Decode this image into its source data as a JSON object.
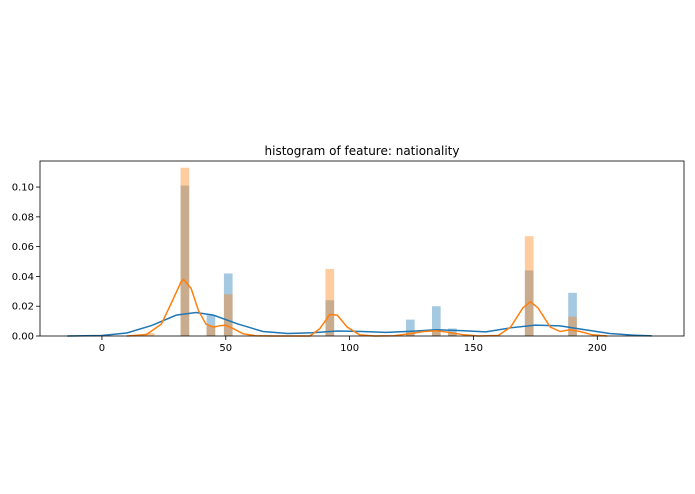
{
  "chart_data": {
    "type": "bar",
    "title": "histogram of feature: nationality",
    "xlabel": "",
    "ylabel": "",
    "xlim": [
      -25,
      235
    ],
    "ylim": [
      0,
      0.1175
    ],
    "xticks": [
      0,
      50,
      100,
      150,
      200
    ],
    "yticks": [
      0.0,
      0.02,
      0.04,
      0.06,
      0.08,
      0.1
    ],
    "ytick_labels": [
      "0.00",
      "0.02",
      "0.04",
      "0.06",
      "0.08",
      "0.10"
    ],
    "bin_width": 3.5,
    "grid": false,
    "legend": "none",
    "series": [
      {
        "color": "#1f77b4",
        "bins": [
          {
            "x": 33.5,
            "value": 0.101
          },
          {
            "x": 44,
            "value": 0.014
          },
          {
            "x": 51,
            "value": 0.042
          },
          {
            "x": 92,
            "value": 0.024
          },
          {
            "x": 124.5,
            "value": 0.011
          },
          {
            "x": 135,
            "value": 0.02
          },
          {
            "x": 141.5,
            "value": 0.005
          },
          {
            "x": 172.5,
            "value": 0.044
          },
          {
            "x": 190,
            "value": 0.029
          }
        ],
        "kde": [
          [
            -14,
            0
          ],
          [
            0,
            0.0003
          ],
          [
            10,
            0.002
          ],
          [
            20,
            0.007
          ],
          [
            30,
            0.014
          ],
          [
            38,
            0.0158
          ],
          [
            45,
            0.014
          ],
          [
            55,
            0.008
          ],
          [
            65,
            0.003
          ],
          [
            75,
            0.0017
          ],
          [
            85,
            0.0022
          ],
          [
            95,
            0.0034
          ],
          [
            105,
            0.003
          ],
          [
            115,
            0.0024
          ],
          [
            125,
            0.0032
          ],
          [
            135,
            0.0042
          ],
          [
            145,
            0.0036
          ],
          [
            155,
            0.0028
          ],
          [
            165,
            0.0055
          ],
          [
            175,
            0.0073
          ],
          [
            185,
            0.0068
          ],
          [
            195,
            0.0042
          ],
          [
            205,
            0.0017
          ],
          [
            215,
            0.0005
          ],
          [
            222,
            0.0001
          ]
        ]
      },
      {
        "color": "#ff7f0e",
        "bins": [
          {
            "x": 19.5,
            "value": 0.002
          },
          {
            "x": 33.5,
            "value": 0.113
          },
          {
            "x": 44,
            "value": 0.007
          },
          {
            "x": 51,
            "value": 0.028
          },
          {
            "x": 92,
            "value": 0.045
          },
          {
            "x": 124.5,
            "value": 0.003
          },
          {
            "x": 135,
            "value": 0.003
          },
          {
            "x": 141.5,
            "value": 0.002
          },
          {
            "x": 172.5,
            "value": 0.067
          },
          {
            "x": 190,
            "value": 0.013
          }
        ],
        "kde": [
          [
            10,
            0
          ],
          [
            18,
            0.001
          ],
          [
            24,
            0.008
          ],
          [
            28,
            0.022
          ],
          [
            32,
            0.0365
          ],
          [
            33,
            0.038
          ],
          [
            36,
            0.032
          ],
          [
            39,
            0.017
          ],
          [
            42,
            0.008
          ],
          [
            45,
            0.006
          ],
          [
            48,
            0.007
          ],
          [
            50,
            0.0072
          ],
          [
            53,
            0.005
          ],
          [
            57,
            0.0015
          ],
          [
            62,
            0.0002
          ],
          [
            70,
            0
          ],
          [
            84,
            0
          ],
          [
            88,
            0.005
          ],
          [
            92,
            0.0145
          ],
          [
            95,
            0.014
          ],
          [
            99,
            0.006
          ],
          [
            104,
            0.0008
          ],
          [
            110,
            0
          ],
          [
            118,
            0.0002
          ],
          [
            124,
            0.0015
          ],
          [
            130,
            0.003
          ],
          [
            135,
            0.0035
          ],
          [
            140,
            0.0025
          ],
          [
            146,
            0.0008
          ],
          [
            152,
            0
          ],
          [
            160,
            0.0003
          ],
          [
            165,
            0.006
          ],
          [
            170,
            0.019
          ],
          [
            173,
            0.023
          ],
          [
            176,
            0.019
          ],
          [
            181,
            0.006
          ],
          [
            185,
            0.003
          ],
          [
            189,
            0.0042
          ],
          [
            193,
            0.003
          ],
          [
            198,
            0.0008
          ],
          [
            204,
            0
          ]
        ]
      }
    ]
  }
}
